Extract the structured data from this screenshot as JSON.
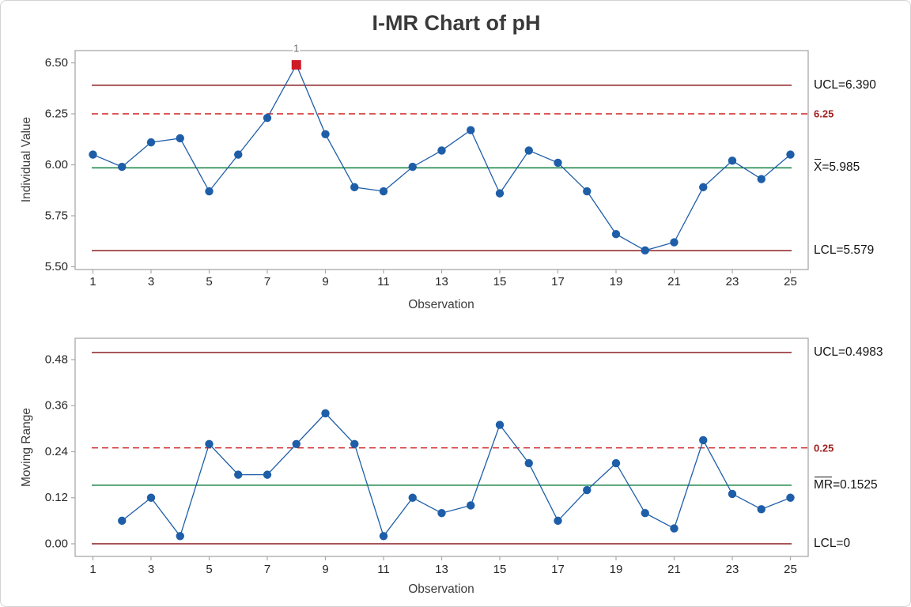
{
  "title": "I-MR Chart of pH",
  "colors": {
    "series_blue": "#1E5EA8",
    "limit_line": "#8C1F23",
    "center_line": "#0E7F3D",
    "spec_line": "#CD2323",
    "spec_label_red": "#A02020",
    "out_marker_red": "#CE1B26",
    "flag_gray": "#6B6B6B",
    "axis_frame_gray": "#A9A9A9",
    "tick_label": "#262626",
    "title_text": "#3A3A3A",
    "annotation_text": "#141414",
    "background": "#FFFFFF"
  },
  "chart_data": [
    {
      "type": "line",
      "panel": "individuals",
      "ylabel": "Individual Value",
      "xlabel": "Observation",
      "grid": false,
      "legend": false,
      "x": [
        1,
        2,
        3,
        4,
        5,
        6,
        7,
        8,
        9,
        10,
        11,
        12,
        13,
        14,
        15,
        16,
        17,
        18,
        19,
        20,
        21,
        22,
        23,
        24,
        25
      ],
      "values": [
        6.05,
        5.99,
        6.11,
        6.13,
        5.87,
        6.05,
        6.23,
        6.49,
        6.15,
        5.89,
        5.87,
        5.99,
        6.07,
        6.17,
        5.86,
        6.07,
        6.01,
        5.87,
        5.66,
        5.58,
        5.62,
        5.89,
        6.02,
        5.93,
        6.05
      ],
      "xtick_labels": [
        "1",
        "3",
        "5",
        "7",
        "9",
        "11",
        "13",
        "15",
        "17",
        "19",
        "21",
        "23",
        "25"
      ],
      "ytick_values": [
        6.5,
        6.25,
        6.0,
        5.75,
        5.5
      ],
      "ytick_labels": [
        "6.50",
        "6.25",
        "6.00",
        "5.75",
        "5.50"
      ],
      "xlim": [
        0.4,
        25.6
      ],
      "ylim": [
        5.49,
        6.56
      ],
      "lines": [
        {
          "kind": "ucl",
          "value": 6.39,
          "label": "UCL=6.390",
          "style": "limit"
        },
        {
          "kind": "spec",
          "value": 6.25,
          "label": "6.25",
          "style": "spec"
        },
        {
          "kind": "center",
          "value": 5.985,
          "bar": "X",
          "label": "=5.985",
          "style": "center"
        },
        {
          "kind": "lcl",
          "value": 5.579,
          "label": "LCL=5.579",
          "style": "limit"
        }
      ],
      "out_points": [
        {
          "x": 8,
          "value": 6.49,
          "flag": "1"
        }
      ]
    },
    {
      "type": "line",
      "panel": "moving-range",
      "ylabel": "Moving Range",
      "xlabel": "Observation",
      "grid": false,
      "legend": false,
      "x": [
        2,
        3,
        4,
        5,
        6,
        7,
        8,
        9,
        10,
        11,
        12,
        13,
        14,
        15,
        16,
        17,
        18,
        19,
        20,
        21,
        22,
        23,
        24,
        25
      ],
      "values": [
        0.06,
        0.12,
        0.02,
        0.26,
        0.18,
        0.18,
        0.26,
        0.34,
        0.26,
        0.02,
        0.12,
        0.08,
        0.1,
        0.31,
        0.21,
        0.06,
        0.14,
        0.21,
        0.08,
        0.04,
        0.27,
        0.13,
        0.09,
        0.12
      ],
      "xtick_labels": [
        "1",
        "3",
        "5",
        "7",
        "9",
        "11",
        "13",
        "15",
        "17",
        "19",
        "21",
        "23",
        "25"
      ],
      "ytick_values": [
        0.48,
        0.36,
        0.24,
        0.12,
        0.0
      ],
      "ytick_labels": [
        "0.48",
        "0.36",
        "0.24",
        "0.12",
        "0.00"
      ],
      "xlim": [
        0.4,
        25.6
      ],
      "ylim": [
        -0.03,
        0.54
      ],
      "lines": [
        {
          "kind": "ucl",
          "value": 0.4983,
          "label": "UCL=0.4983",
          "style": "limit"
        },
        {
          "kind": "spec",
          "value": 0.25,
          "label": "0.25",
          "style": "spec"
        },
        {
          "kind": "center",
          "value": 0.1525,
          "bar": "MR",
          "label": "=0.1525",
          "style": "center"
        },
        {
          "kind": "lcl",
          "value": 0,
          "label": "LCL=0",
          "style": "limit"
        }
      ],
      "out_points": []
    }
  ]
}
